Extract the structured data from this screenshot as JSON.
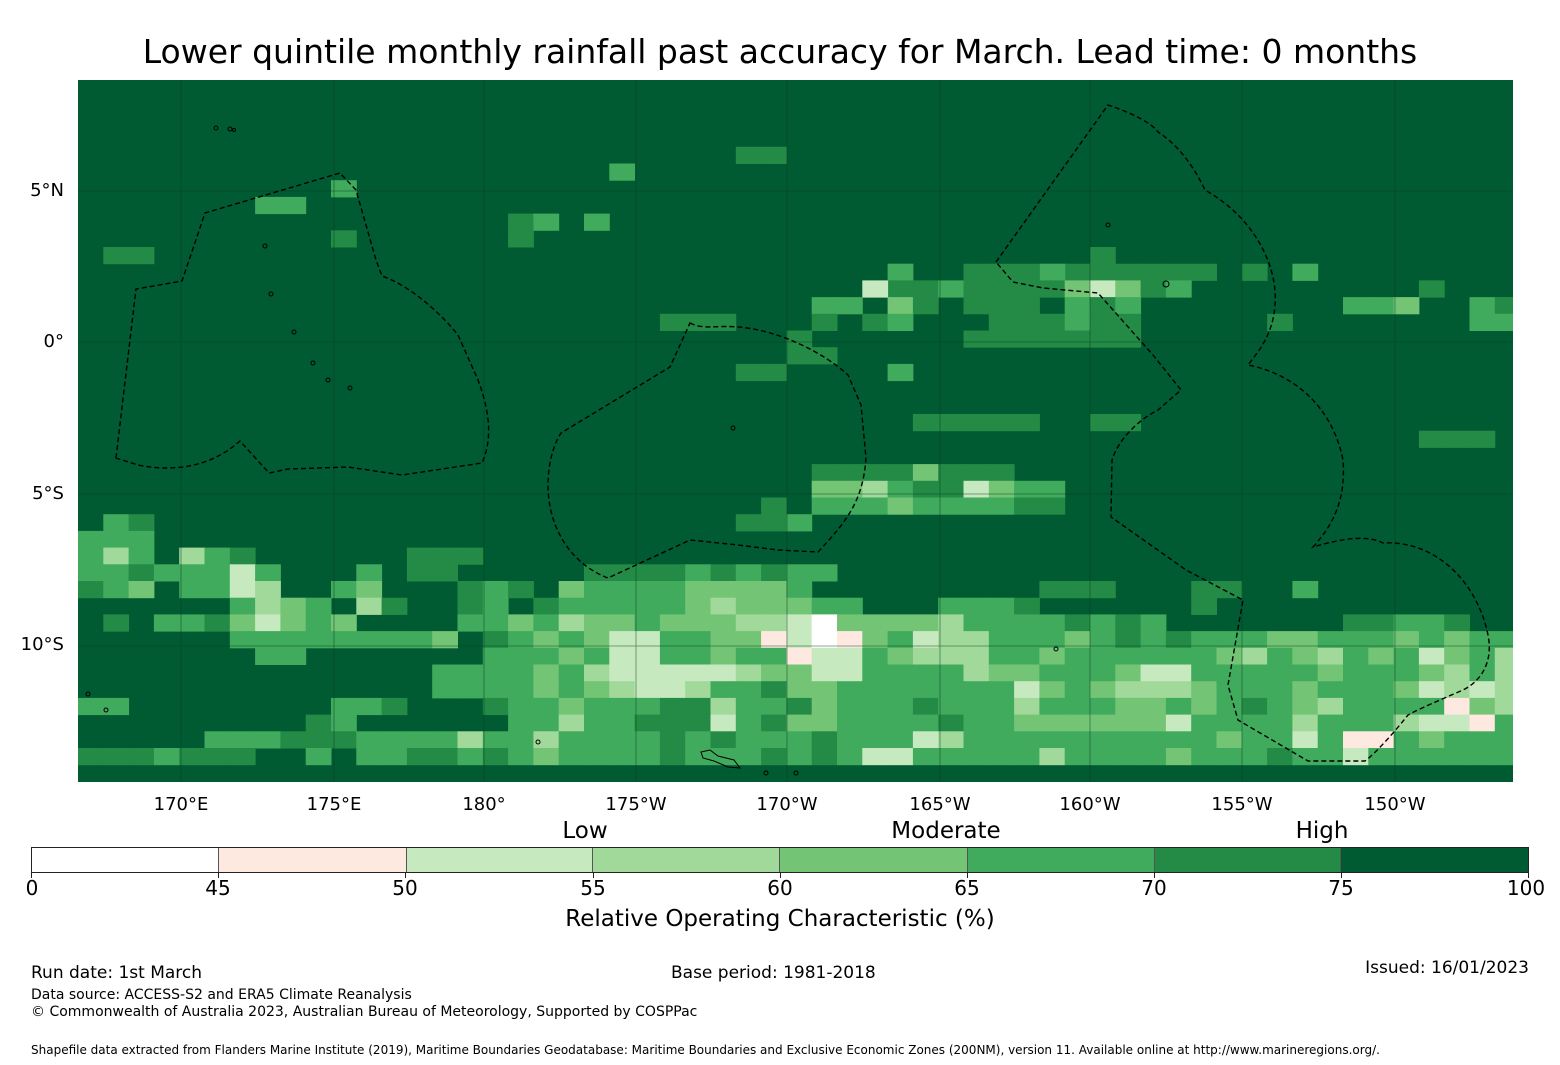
{
  "title": "Lower quintile monthly rainfall past accuracy for March. Lead time: 0 months",
  "map": {
    "lat_labels": [
      "5°N",
      "0°",
      "5°S",
      "10°S"
    ],
    "lon_labels": [
      "170°E",
      "175°E",
      "180°",
      "175°W",
      "170°W",
      "165°W",
      "160°W",
      "155°W",
      "150°W"
    ],
    "background_color": "#005a32"
  },
  "legend": {
    "categories": [
      "Low",
      "Moderate",
      "High"
    ],
    "bins": [
      {
        "from": 0,
        "to": 45,
        "color": "#ffffff"
      },
      {
        "from": 45,
        "to": 50,
        "color": "#fee9e1"
      },
      {
        "from": 50,
        "to": 55,
        "color": "#c7e9c0"
      },
      {
        "from": 55,
        "to": 60,
        "color": "#a1d99b"
      },
      {
        "from": 60,
        "to": 65,
        "color": "#74c476"
      },
      {
        "from": 65,
        "to": 70,
        "color": "#41ab5d"
      },
      {
        "from": 70,
        "to": 75,
        "color": "#238b45"
      },
      {
        "from": 75,
        "to": 100,
        "color": "#005a32"
      }
    ],
    "tick_labels": [
      "0",
      "45",
      "50",
      "55",
      "60",
      "65",
      "70",
      "75",
      "100"
    ],
    "axis_label": "Relative Operating Characteristic (%)"
  },
  "footer": {
    "run_date": "Run date: 1st March",
    "base_period": "Base period: 1981-2018",
    "issued": "Issued: 16/01/2023",
    "data_source": "Data source: ACCESS-S2 and ERA5 Climate Reanalysis",
    "copyright": "© Commonwealth of Australia 2023, Australian Bureau of Meteorology, Supported by COSPPac",
    "shapefile": "Shapefile data extracted from Flanders Marine Institute (2019), Maritime Boundaries Geodatabase: Maritime Boundaries and Exclusive Economic Zones (200NM), version 11. Available online at http://www.marineregions.org/."
  }
}
